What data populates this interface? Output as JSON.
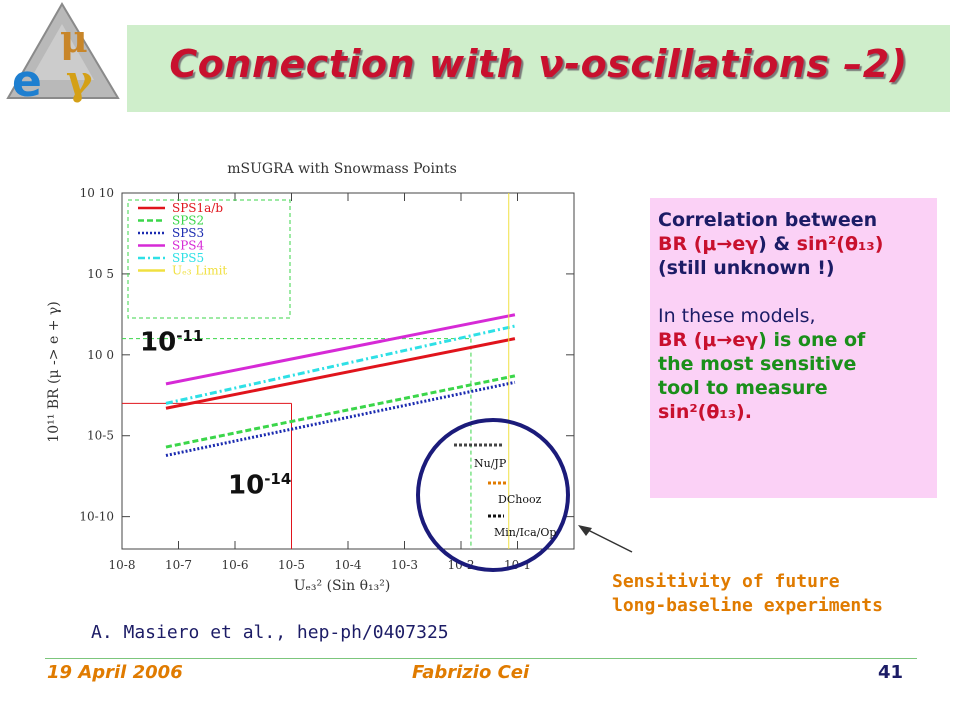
{
  "title": "Connection with ν-oscillations –2)",
  "logo": {
    "letters": [
      "μ",
      "e",
      "γ"
    ]
  },
  "chart_data": {
    "type": "line",
    "title": "mSUGRA with Snowmass Points",
    "xlabel": "Uₑ₃² (Sin θ₁₃²)",
    "ylabel": "10¹¹ BR (μ -> e + γ)",
    "x_scale": "log",
    "y_scale": "log",
    "xlim": [
      1e-08,
      1
    ],
    "ylim": [
      1e-12,
      10000000000.0
    ],
    "x_ticks": [
      "10-8",
      "10-7",
      "10-6",
      "10-5",
      "10-4",
      "10-3",
      "10-2",
      "10-1"
    ],
    "y_ticks": [
      "10-10",
      "10-5",
      "10 0",
      "10 5",
      "10 10"
    ],
    "series": [
      {
        "name": "SPS1a/b",
        "color": "#e0141c",
        "style": "solid",
        "x": [
          6e-08,
          0.09
        ],
        "y": [
          0.0005,
          10
        ]
      },
      {
        "name": "SPS2",
        "color": "#3bd64a",
        "style": "dashed",
        "x": [
          6e-08,
          0.09
        ],
        "y": [
          2e-06,
          0.05
        ]
      },
      {
        "name": "SPS3",
        "color": "#1b2bb0",
        "style": "dotted",
        "x": [
          6e-08,
          0.09
        ],
        "y": [
          6e-07,
          0.02
        ]
      },
      {
        "name": "SPS4",
        "color": "#d62ad6",
        "style": "solid",
        "x": [
          6e-08,
          0.09
        ],
        "y": [
          0.016,
          300
        ]
      },
      {
        "name": "SPS5",
        "color": "#2ee0e6",
        "style": "dashdot",
        "x": [
          6e-08,
          0.09
        ],
        "y": [
          0.001,
          60
        ]
      },
      {
        "name": "Uₑ₃ Limit",
        "color": "#f0e040",
        "style": "solid",
        "x": [
          0.07,
          0.07
        ],
        "y": [
          1e-12,
          10000000000.0
        ]
      }
    ],
    "reference_lines": [
      {
        "color": "#e0141c",
        "x": 1e-05,
        "y": 0.001
      },
      {
        "color": "#3bd64a",
        "x": 0.015,
        "y": 10
      }
    ],
    "legend_position": "top-left",
    "grid": false,
    "annotations": {
      "upper": {
        "base": "10",
        "exp": "-11"
      },
      "lower": {
        "base": "10",
        "exp": "-14"
      }
    },
    "inset_labels": [
      "Nu/JP",
      "DChooz",
      "Min/Ica/Op"
    ]
  },
  "note": {
    "line1": "Correlation between",
    "line2_br": "BR (",
    "line2_mu_e_gamma": "μ→eγ",
    "line2_amp": ") & ",
    "line2_sin": "sin²(θ₁₃)",
    "line3": "(still unknown !)",
    "line4": "In these models,",
    "line5_br": "BR (",
    "line5_mu_e_gamma": "μ→eγ",
    "line5_rest": ") is one of",
    "line6": "the most sensitive",
    "line7": "tool to measure",
    "line8": "sin²(θ₁₃).",
    "colors": {
      "navy": "#1c1c66",
      "red": "#c8102e",
      "green": "#1a8f1a",
      "background": "#fbd1f6"
    }
  },
  "sensitivity_caption": [
    "Sensitivity of future",
    "long-baseline experiments"
  ],
  "reference": "A. Masiero et al., hep-ph/0407325",
  "footer": {
    "date": "19 April 2006",
    "author": "Fabrizio Cei",
    "page": "41"
  }
}
